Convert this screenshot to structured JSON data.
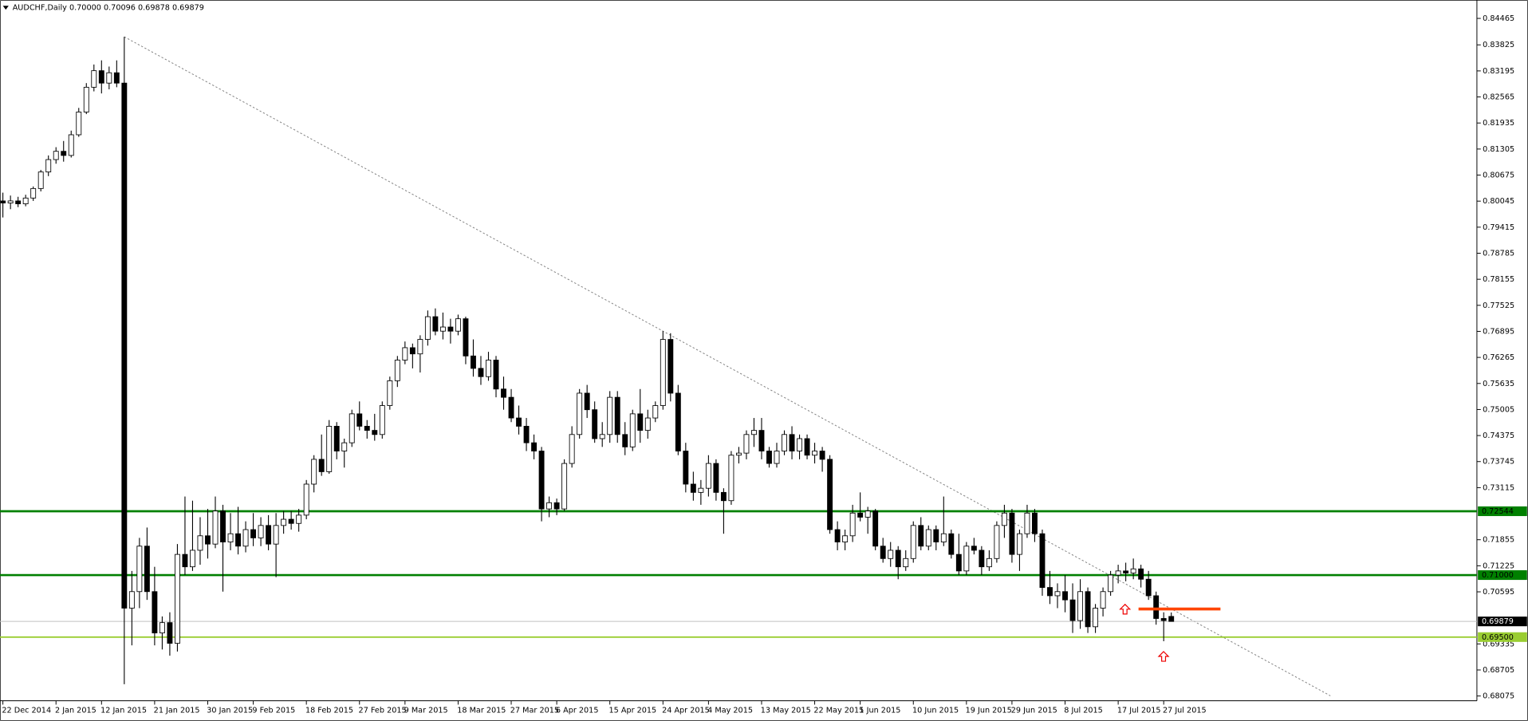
{
  "chart_data": {
    "type": "candlestick",
    "title": "AUDCHF,Daily 0.70000 0.70096 0.69878 0.69879",
    "categories": [
      "22 Dec 2014",
      null,
      null,
      null,
      null,
      null,
      null,
      "2 Jan 2015",
      null,
      null,
      null,
      null,
      null,
      "12 Jan 2015",
      null,
      null,
      null,
      null,
      null,
      null,
      "21 Jan 2015",
      null,
      null,
      null,
      null,
      null,
      null,
      "30 Jan 2015",
      null,
      null,
      null,
      null,
      null,
      "9 Feb 2015",
      null,
      null,
      null,
      null,
      null,
      null,
      "18 Feb 2015",
      null,
      null,
      null,
      null,
      null,
      null,
      "27 Feb 2015",
      null,
      null,
      null,
      null,
      null,
      "9 Mar 2015",
      null,
      null,
      null,
      null,
      null,
      null,
      "18 Mar 2015",
      null,
      null,
      null,
      null,
      null,
      null,
      "27 Mar 2015",
      null,
      null,
      null,
      null,
      null,
      "6 Apr 2015",
      null,
      null,
      null,
      null,
      null,
      null,
      "15 Apr 2015",
      null,
      null,
      null,
      null,
      null,
      null,
      "24 Apr 2015",
      null,
      null,
      null,
      null,
      null,
      "4 May 2015",
      null,
      null,
      null,
      null,
      null,
      null,
      "13 May 2015",
      null,
      null,
      null,
      null,
      null,
      null,
      "22 May 2015",
      null,
      null,
      null,
      null,
      null,
      "1 Jun 2015",
      null,
      null,
      null,
      null,
      null,
      null,
      "10 Jun 2015",
      null,
      null,
      null,
      null,
      null,
      null,
      "19 Jun 2015",
      null,
      null,
      null,
      null,
      null,
      "29 Jun 2015",
      null,
      null,
      null,
      null,
      null,
      null,
      "8 Jul 2015",
      null,
      null,
      null,
      null,
      null,
      null,
      "17 Jul 2015",
      null,
      null,
      null,
      null,
      null,
      "27 Jul 2015",
      null
    ],
    "open": [
      0.8005,
      0.8,
      0.8005,
      0.7998,
      0.8012,
      0.8035,
      0.8075,
      0.8105,
      0.8125,
      0.8115,
      0.8165,
      0.822,
      0.828,
      0.832,
      0.829,
      0.8315,
      0.829,
      0.702,
      0.706,
      0.717,
      0.706,
      0.696,
      0.6985,
      0.6935,
      0.715,
      0.712,
      0.716,
      0.7195,
      0.7175,
      0.7255,
      0.718,
      0.72,
      0.717,
      0.721,
      0.719,
      0.722,
      0.7175,
      0.722,
      0.7235,
      0.7225,
      0.7245,
      0.732,
      0.738,
      0.735,
      0.746,
      0.74,
      0.742,
      0.749,
      0.746,
      0.745,
      0.744,
      0.751,
      0.757,
      0.762,
      0.765,
      0.7635,
      0.767,
      0.7725,
      0.769,
      0.77,
      0.769,
      0.772,
      0.763,
      0.76,
      0.758,
      0.762,
      0.755,
      0.753,
      0.748,
      0.746,
      0.742,
      0.74,
      0.726,
      0.7275,
      0.726,
      0.737,
      0.744,
      0.754,
      0.75,
      0.743,
      0.744,
      0.753,
      0.744,
      0.741,
      0.749,
      0.745,
      0.748,
      0.751,
      0.767,
      0.754,
      0.74,
      0.732,
      0.73,
      0.731,
      0.737,
      0.73,
      0.728,
      0.739,
      0.7395,
      0.744,
      0.745,
      0.74,
      0.737,
      0.74,
      0.744,
      0.74,
      0.743,
      0.739,
      0.74,
      0.738,
      0.721,
      0.718,
      0.7195,
      0.725,
      0.724,
      0.7255,
      0.717,
      0.714,
      0.716,
      0.712,
      0.714,
      0.722,
      0.717,
      0.721,
      0.718,
      0.72,
      0.715,
      0.711,
      0.717,
      0.716,
      0.712,
      0.714,
      0.722,
      0.725,
      0.715,
      0.72,
      0.725,
      0.72,
      0.707,
      0.705,
      0.706,
      0.704,
      0.699,
      0.706,
      0.6975,
      0.702,
      0.706,
      0.71,
      0.711,
      0.7105,
      0.7115,
      0.709,
      0.705,
      0.6995,
      0.7
    ],
    "high": [
      0.8025,
      0.8018,
      0.8015,
      0.802,
      0.804,
      0.808,
      0.8115,
      0.8135,
      0.815,
      0.8175,
      0.823,
      0.829,
      0.8335,
      0.8345,
      0.833,
      0.8345,
      0.8402,
      0.711,
      0.719,
      0.7215,
      0.712,
      0.7,
      0.701,
      0.7175,
      0.729,
      0.728,
      0.724,
      0.726,
      0.729,
      0.727,
      0.725,
      0.7265,
      0.723,
      0.725,
      0.724,
      0.7245,
      0.725,
      0.7255,
      0.7255,
      0.726,
      0.733,
      0.739,
      0.744,
      0.7475,
      0.747,
      0.743,
      0.75,
      0.752,
      0.7475,
      0.749,
      0.752,
      0.758,
      0.763,
      0.7665,
      0.766,
      0.768,
      0.774,
      0.7745,
      0.7735,
      0.772,
      0.773,
      0.7725,
      0.767,
      0.763,
      0.764,
      0.763,
      0.758,
      0.755,
      0.751,
      0.748,
      0.744,
      0.741,
      0.729,
      0.7285,
      0.738,
      0.746,
      0.755,
      0.756,
      0.752,
      0.747,
      0.7545,
      0.7545,
      0.747,
      0.75,
      0.755,
      0.75,
      0.752,
      0.769,
      0.7685,
      0.756,
      0.742,
      0.735,
      0.733,
      0.739,
      0.738,
      0.731,
      0.74,
      0.741,
      0.745,
      0.748,
      0.748,
      0.741,
      0.742,
      0.745,
      0.746,
      0.744,
      0.744,
      0.742,
      0.741,
      0.739,
      0.723,
      0.721,
      0.727,
      0.73,
      0.7265,
      0.726,
      0.719,
      0.718,
      0.717,
      0.716,
      0.723,
      0.724,
      0.722,
      0.722,
      0.729,
      0.721,
      0.72,
      0.718,
      0.719,
      0.717,
      0.716,
      0.723,
      0.727,
      0.726,
      0.721,
      0.727,
      0.726,
      0.721,
      0.711,
      0.708,
      0.71,
      0.708,
      0.709,
      0.707,
      0.703,
      0.707,
      0.711,
      0.7125,
      0.713,
      0.714,
      0.7125,
      0.711,
      0.706,
      0.701,
      0.70096
    ],
    "low": [
      0.7965,
      0.7985,
      0.799,
      0.7992,
      0.8005,
      0.8028,
      0.8065,
      0.8095,
      0.81,
      0.811,
      0.816,
      0.8215,
      0.827,
      0.8265,
      0.8275,
      0.828,
      0.6836,
      0.693,
      0.702,
      0.704,
      0.693,
      0.692,
      0.6905,
      0.6915,
      0.71,
      0.711,
      0.7125,
      0.714,
      0.7165,
      0.706,
      0.716,
      0.715,
      0.7155,
      0.717,
      0.717,
      0.716,
      0.7095,
      0.72,
      0.721,
      0.7205,
      0.7235,
      0.73,
      0.734,
      0.7345,
      0.738,
      0.736,
      0.741,
      0.745,
      0.743,
      0.7425,
      0.743,
      0.75,
      0.7555,
      0.761,
      0.76,
      0.759,
      0.7655,
      0.768,
      0.767,
      0.766,
      0.768,
      0.761,
      0.758,
      0.756,
      0.757,
      0.753,
      0.75,
      0.747,
      0.744,
      0.74,
      0.738,
      0.723,
      0.724,
      0.7245,
      0.7255,
      0.736,
      0.743,
      0.748,
      0.742,
      0.741,
      0.742,
      0.742,
      0.739,
      0.74,
      0.742,
      0.743,
      0.747,
      0.75,
      0.752,
      0.739,
      0.73,
      0.728,
      0.727,
      0.729,
      0.728,
      0.72,
      0.727,
      0.737,
      0.738,
      0.741,
      0.738,
      0.736,
      0.736,
      0.739,
      0.738,
      0.738,
      0.738,
      0.737,
      0.735,
      0.72,
      0.716,
      0.716,
      0.718,
      0.723,
      0.72,
      0.716,
      0.713,
      0.712,
      0.709,
      0.711,
      0.713,
      0.716,
      0.716,
      0.716,
      0.717,
      0.714,
      0.71,
      0.71,
      0.715,
      0.71,
      0.711,
      0.713,
      0.719,
      0.713,
      0.711,
      0.719,
      0.718,
      0.705,
      0.703,
      0.702,
      0.701,
      0.696,
      0.697,
      0.696,
      0.696,
      0.7,
      0.705,
      0.708,
      0.7085,
      0.709,
      0.707,
      0.704,
      0.698,
      0.694,
      0.69878
    ],
    "close": [
      0.8,
      0.8005,
      0.7998,
      0.8012,
      0.8035,
      0.8075,
      0.8105,
      0.8125,
      0.8115,
      0.8165,
      0.822,
      0.828,
      0.832,
      0.829,
      0.8315,
      0.829,
      0.702,
      0.706,
      0.717,
      0.706,
      0.696,
      0.6985,
      0.6935,
      0.715,
      0.712,
      0.716,
      0.7195,
      0.7175,
      0.7255,
      0.718,
      0.72,
      0.717,
      0.721,
      0.719,
      0.722,
      0.7175,
      0.722,
      0.7235,
      0.7225,
      0.7245,
      0.732,
      0.738,
      0.735,
      0.746,
      0.74,
      0.742,
      0.749,
      0.746,
      0.745,
      0.744,
      0.751,
      0.757,
      0.762,
      0.765,
      0.7635,
      0.767,
      0.7725,
      0.769,
      0.77,
      0.769,
      0.772,
      0.763,
      0.76,
      0.758,
      0.762,
      0.755,
      0.753,
      0.748,
      0.746,
      0.742,
      0.74,
      0.726,
      0.7275,
      0.726,
      0.737,
      0.744,
      0.754,
      0.75,
      0.743,
      0.744,
      0.753,
      0.744,
      0.741,
      0.749,
      0.745,
      0.748,
      0.751,
      0.767,
      0.754,
      0.74,
      0.732,
      0.73,
      0.731,
      0.737,
      0.73,
      0.728,
      0.739,
      0.7395,
      0.744,
      0.745,
      0.74,
      0.737,
      0.74,
      0.744,
      0.74,
      0.743,
      0.739,
      0.74,
      0.738,
      0.721,
      0.718,
      0.7195,
      0.725,
      0.724,
      0.7255,
      0.717,
      0.714,
      0.716,
      0.712,
      0.714,
      0.722,
      0.717,
      0.721,
      0.718,
      0.72,
      0.715,
      0.711,
      0.717,
      0.716,
      0.712,
      0.714,
      0.722,
      0.725,
      0.715,
      0.72,
      0.725,
      0.72,
      0.707,
      0.705,
      0.706,
      0.704,
      0.699,
      0.706,
      0.6975,
      0.702,
      0.706,
      0.71,
      0.711,
      0.7105,
      0.7115,
      0.709,
      0.705,
      0.6995,
      0.699,
      0.69879
    ],
    "up_color": "#ffffff",
    "down_color": "#000000",
    "ylim": [
      0.6796,
      0.8491
    ],
    "yticks": [
      0.84465,
      0.83825,
      0.83195,
      0.82565,
      0.81935,
      0.81305,
      0.80675,
      0.80045,
      0.79415,
      0.78785,
      0.78155,
      0.77525,
      0.76895,
      0.76265,
      0.75635,
      0.75005,
      0.74375,
      0.73745,
      0.73115,
      0.71855,
      0.71225,
      0.70595,
      0.69335,
      0.68705,
      0.68075
    ],
    "levels": [
      {
        "value": 0.72544,
        "label": "0.72544",
        "color": "#008000",
        "text_color": "#000000"
      },
      {
        "value": 0.71,
        "label": "0.71000",
        "color": "#008000",
        "text_color": "#000000"
      },
      {
        "value": 0.695,
        "label": "0.69500",
        "color": "#9acd32",
        "text_color": "#000000"
      },
      {
        "value": 0.69879,
        "label": "0.69879",
        "color": "#c0c0c0",
        "label_fill": "#000000",
        "text_color": "#ffffff"
      }
    ],
    "trendline": {
      "values": [
        0.8402,
        0.6808
      ],
      "color": "#808080"
    },
    "resistance": {
      "value": 0.7018,
      "color": "#ff4500"
    }
  }
}
